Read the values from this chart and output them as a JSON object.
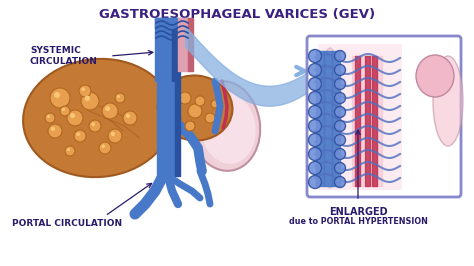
{
  "title": "GASTROESOPHAGEAL VARICES (GEV)",
  "title_color": "#3a2080",
  "title_fontsize": 9.5,
  "bg_color": "#ffffff",
  "label_systemic": "SYSTEMIC\nCIRCULATION",
  "label_portal": "PORTAL CIRCULATION",
  "label_enlarged_1": "ENLARGED",
  "label_enlarged_2": "due to PORTAL HYPERTENSION",
  "label_color": "#2a1a6a",
  "liver_main": "#c47a35",
  "liver_shadow": "#a05a20",
  "liver_nodule_fill": "#e8a050",
  "liver_nodule_edge": "#b06820",
  "stomach_fill": "#f0d0d8",
  "stomach_edge": "#c090a0",
  "blue_vessel": "#4878c8",
  "blue_vessel_dark": "#2a50a0",
  "pink_vessel": "#e8a0b0",
  "red_vessel": "#c03050",
  "box_fill": "#f0f0ff",
  "box_edge": "#8080c0",
  "sweep_blue": "#6090d0",
  "varix_blue": "#5070c0",
  "varix_blue_dark": "#3050a0"
}
